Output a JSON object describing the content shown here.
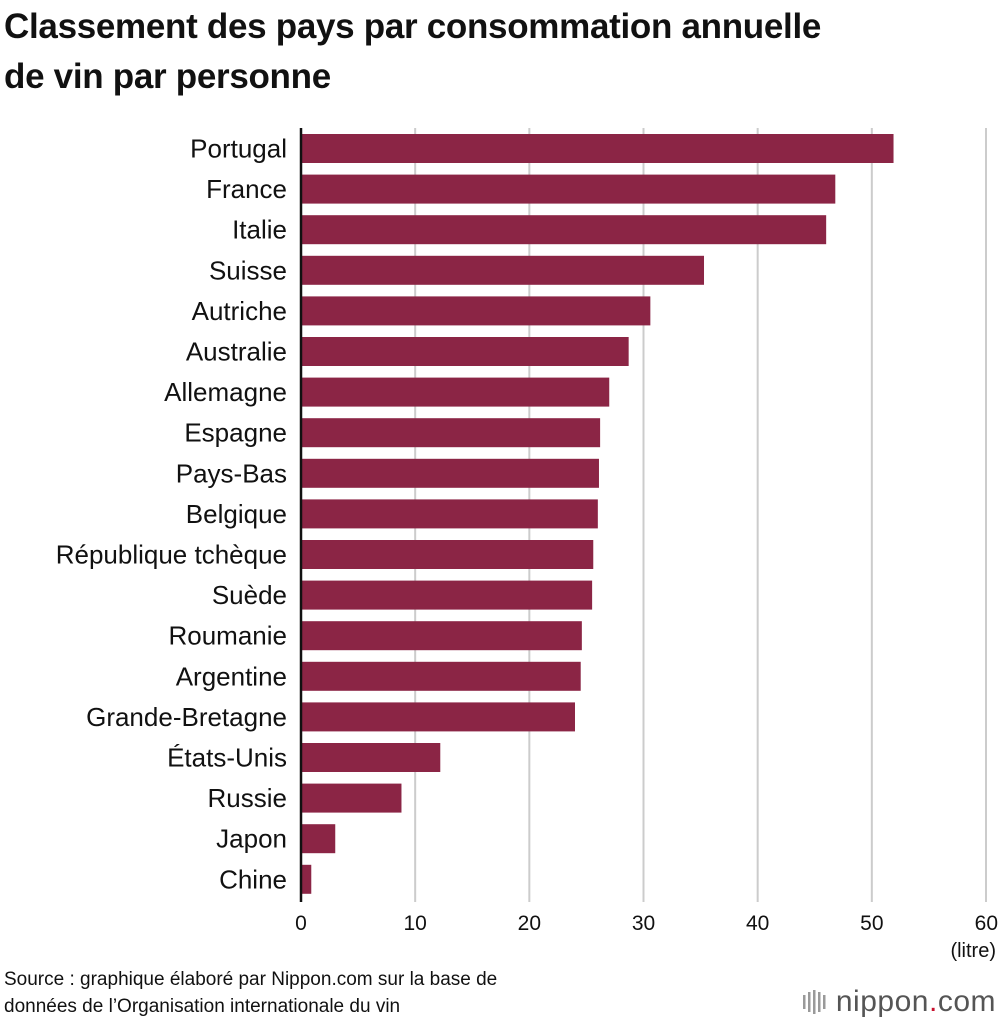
{
  "title_lines": [
    "Classement des pays par consommation annuelle",
    "de vin par personne"
  ],
  "source_lines": [
    "Source : graphique élaboré par Nippon.com sur la base de",
    "données de l’Organisation internationale du vin"
  ],
  "logo": {
    "name": "nippon",
    "dot": ".",
    "tld": "com"
  },
  "colors": {
    "bar": "#8b2545",
    "grid": "#cccccc",
    "axis": "#111111"
  },
  "chart_data": {
    "type": "bar",
    "orientation": "horizontal",
    "categories": [
      "Portugal",
      "France",
      "Italie",
      "Suisse",
      "Autriche",
      "Australie",
      "Allemagne",
      "Espagne",
      "Pays-Bas",
      "Belgique",
      "République tchèque",
      "Suède",
      "Roumanie",
      "Argentine",
      "Grande-Bretagne",
      "États-Unis",
      "Russie",
      "Japon",
      "Chine"
    ],
    "values": [
      51.9,
      46.8,
      46.0,
      35.3,
      30.6,
      28.7,
      27.0,
      26.2,
      26.1,
      26.0,
      25.6,
      25.5,
      24.6,
      24.5,
      24.0,
      12.2,
      8.8,
      3.0,
      0.9
    ],
    "xlim": [
      0,
      60
    ],
    "xticks": [
      "0",
      "10",
      "20",
      "30",
      "40",
      "50",
      "60"
    ],
    "unit": "(litre)",
    "grid": true
  }
}
